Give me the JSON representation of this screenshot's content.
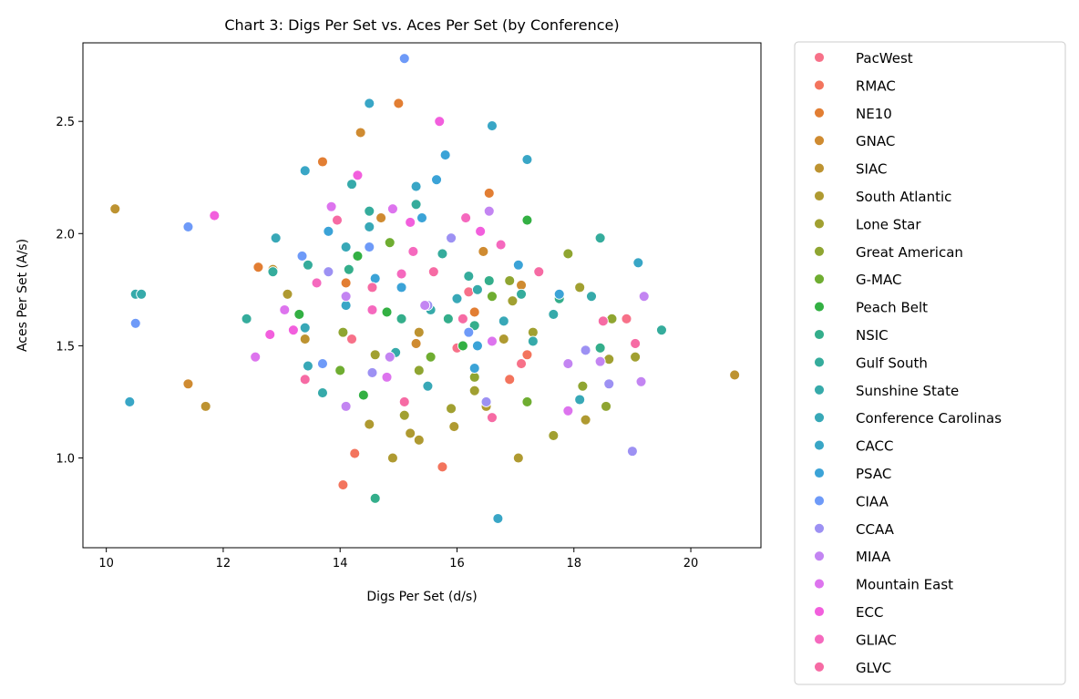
{
  "chart_data": {
    "type": "scatter",
    "title": "Chart 3: Digs Per Set vs. Aces Per Set (by Conference)",
    "xlabel": "Digs Per Set (d/s)",
    "ylabel": "Aces Per Set (A/s)",
    "xlim": [
      9.6,
      21.2
    ],
    "ylim": [
      0.6,
      2.85
    ],
    "xticks": [
      10,
      12,
      14,
      16,
      18,
      20
    ],
    "yticks": [
      1.0,
      1.5,
      2.0,
      2.5
    ],
    "xtick_labels": [
      "10",
      "12",
      "14",
      "16",
      "18",
      "20"
    ],
    "ytick_labels": [
      "1.0",
      "1.5",
      "2.0",
      "2.5"
    ],
    "grid": false,
    "legend_placement": "outside-right",
    "series": [
      {
        "name": "PacWest",
        "color": "#f77189",
        "points": [
          [
            16.2,
            1.74
          ],
          [
            17.1,
            1.42
          ],
          [
            18.9,
            1.62
          ],
          [
            14.2,
            1.53
          ],
          [
            16.0,
            1.49
          ]
        ]
      },
      {
        "name": "RMAC",
        "color": "#f3745d",
        "points": [
          [
            14.05,
            0.88
          ],
          [
            14.25,
            1.02
          ],
          [
            15.75,
            0.96
          ],
          [
            16.9,
            1.35
          ],
          [
            17.2,
            1.46
          ]
        ]
      },
      {
        "name": "NE10",
        "color": "#e27e33",
        "points": [
          [
            15.0,
            2.58
          ],
          [
            13.7,
            2.32
          ],
          [
            16.55,
            2.18
          ],
          [
            16.3,
            1.65
          ],
          [
            14.1,
            1.78
          ],
          [
            12.6,
            1.85
          ]
        ]
      },
      {
        "name": "GNAC",
        "color": "#cf8b31",
        "points": [
          [
            14.35,
            2.45
          ],
          [
            14.7,
            2.07
          ],
          [
            16.45,
            1.92
          ],
          [
            15.3,
            1.51
          ],
          [
            11.4,
            1.33
          ],
          [
            17.1,
            1.77
          ]
        ]
      },
      {
        "name": "SIAC",
        "color": "#bd9331",
        "points": [
          [
            10.15,
            2.11
          ],
          [
            11.7,
            1.23
          ],
          [
            20.75,
            1.37
          ],
          [
            12.85,
            1.84
          ],
          [
            13.4,
            1.53
          ],
          [
            15.35,
            1.56
          ]
        ]
      },
      {
        "name": "South Atlantic",
        "color": "#af9a31",
        "points": [
          [
            14.5,
            1.15
          ],
          [
            14.9,
            1.0
          ],
          [
            15.2,
            1.11
          ],
          [
            15.35,
            1.08
          ],
          [
            17.05,
            1.0
          ],
          [
            15.95,
            1.14
          ],
          [
            18.2,
            1.17
          ],
          [
            16.5,
            1.23
          ],
          [
            16.8,
            1.53
          ],
          [
            13.1,
            1.73
          ]
        ]
      },
      {
        "name": "Lone Star",
        "color": "#a1a031",
        "points": [
          [
            15.1,
            1.19
          ],
          [
            15.9,
            1.22
          ],
          [
            16.3,
            1.3
          ],
          [
            18.6,
            1.44
          ],
          [
            19.05,
            1.45
          ],
          [
            17.65,
            1.1
          ],
          [
            16.95,
            1.7
          ],
          [
            17.3,
            1.56
          ],
          [
            18.1,
            1.76
          ],
          [
            14.6,
            1.46
          ]
        ]
      },
      {
        "name": "Great American",
        "color": "#8fa531",
        "points": [
          [
            15.35,
            1.39
          ],
          [
            16.3,
            1.36
          ],
          [
            17.2,
            1.25
          ],
          [
            18.15,
            1.32
          ],
          [
            18.65,
            1.62
          ],
          [
            17.9,
            1.91
          ],
          [
            18.55,
            1.23
          ],
          [
            16.9,
            1.79
          ],
          [
            14.05,
            1.56
          ]
        ]
      },
      {
        "name": "G-MAC",
        "color": "#6fad31",
        "points": [
          [
            14.3,
            1.9
          ],
          [
            14.85,
            1.96
          ],
          [
            15.55,
            1.45
          ],
          [
            14.0,
            1.39
          ],
          [
            13.3,
            1.64
          ],
          [
            16.6,
            1.72
          ],
          [
            17.2,
            1.25
          ],
          [
            14.4,
            1.28
          ]
        ]
      },
      {
        "name": "Peach Belt",
        "color": "#33b043",
        "points": [
          [
            14.4,
            1.28
          ],
          [
            13.3,
            1.64
          ],
          [
            14.3,
            1.9
          ],
          [
            14.8,
            1.65
          ],
          [
            16.1,
            1.5
          ],
          [
            17.2,
            2.06
          ]
        ]
      },
      {
        "name": "NSIC",
        "color": "#34ae8b",
        "points": [
          [
            14.15,
            1.84
          ],
          [
            15.05,
            1.62
          ],
          [
            15.85,
            1.62
          ],
          [
            16.55,
            1.79
          ],
          [
            17.75,
            1.71
          ],
          [
            18.45,
            1.49
          ],
          [
            14.6,
            0.82
          ],
          [
            16.3,
            1.59
          ]
        ]
      },
      {
        "name": "Gulf South",
        "color": "#35ac9c",
        "points": [
          [
            12.4,
            1.62
          ],
          [
            12.85,
            1.83
          ],
          [
            13.45,
            1.86
          ],
          [
            14.5,
            2.1
          ],
          [
            15.3,
            2.13
          ],
          [
            16.2,
            1.81
          ],
          [
            17.1,
            1.73
          ],
          [
            19.5,
            1.57
          ],
          [
            18.45,
            1.98
          ],
          [
            15.75,
            1.91
          ]
        ]
      },
      {
        "name": "Sunshine State",
        "color": "#36aaaa",
        "points": [
          [
            10.5,
            1.73
          ],
          [
            10.6,
            1.73
          ],
          [
            13.7,
            1.29
          ],
          [
            14.2,
            2.22
          ],
          [
            14.95,
            1.47
          ],
          [
            15.55,
            1.66
          ],
          [
            16.35,
            1.75
          ],
          [
            17.3,
            1.52
          ],
          [
            17.65,
            1.64
          ],
          [
            18.3,
            1.72
          ]
        ]
      },
      {
        "name": "Conference Carolinas",
        "color": "#38a8b7",
        "points": [
          [
            12.9,
            1.98
          ],
          [
            13.4,
            1.58
          ],
          [
            13.45,
            1.41
          ],
          [
            14.5,
            2.03
          ],
          [
            15.5,
            1.32
          ],
          [
            16.0,
            1.71
          ],
          [
            16.8,
            1.61
          ],
          [
            18.1,
            1.26
          ],
          [
            14.1,
            1.94
          ]
        ]
      },
      {
        "name": "CACC",
        "color": "#39a6c6",
        "points": [
          [
            10.4,
            1.25
          ],
          [
            13.4,
            2.28
          ],
          [
            14.5,
            2.58
          ],
          [
            15.3,
            2.21
          ],
          [
            16.6,
            2.48
          ],
          [
            17.2,
            2.33
          ],
          [
            19.1,
            1.87
          ],
          [
            16.7,
            0.73
          ],
          [
            14.1,
            1.68
          ]
        ]
      },
      {
        "name": "PSAC",
        "color": "#3ba3d7",
        "points": [
          [
            13.8,
            2.01
          ],
          [
            15.05,
            1.76
          ],
          [
            15.8,
            2.35
          ],
          [
            16.3,
            1.4
          ],
          [
            17.05,
            1.86
          ],
          [
            17.75,
            1.73
          ],
          [
            14.6,
            1.8
          ],
          [
            15.4,
            2.07
          ],
          [
            15.65,
            2.24
          ],
          [
            16.35,
            1.5
          ]
        ]
      },
      {
        "name": "CIAA",
        "color": "#6e9af8",
        "points": [
          [
            10.5,
            1.6
          ],
          [
            11.4,
            2.03
          ],
          [
            13.35,
            1.9
          ],
          [
            13.7,
            1.42
          ],
          [
            14.5,
            1.94
          ],
          [
            15.1,
            2.78
          ],
          [
            16.2,
            1.56
          ]
        ]
      },
      {
        "name": "CCAA",
        "color": "#9d91f3",
        "points": [
          [
            13.8,
            1.83
          ],
          [
            14.55,
            1.38
          ],
          [
            15.9,
            1.98
          ],
          [
            16.5,
            1.25
          ],
          [
            18.2,
            1.48
          ],
          [
            19.0,
            1.03
          ],
          [
            18.6,
            1.33
          ],
          [
            15.5,
            1.68
          ]
        ]
      },
      {
        "name": "MIAA",
        "color": "#c385f2",
        "points": [
          [
            14.1,
            1.23
          ],
          [
            14.1,
            1.72
          ],
          [
            14.85,
            1.45
          ],
          [
            16.55,
            2.1
          ],
          [
            17.9,
            1.42
          ],
          [
            19.15,
            1.34
          ],
          [
            19.2,
            1.72
          ],
          [
            18.45,
            1.43
          ],
          [
            15.45,
            1.68
          ]
        ]
      },
      {
        "name": "Mountain East",
        "color": "#dd74ee",
        "points": [
          [
            12.55,
            1.45
          ],
          [
            13.05,
            1.66
          ],
          [
            13.85,
            2.12
          ],
          [
            14.8,
            1.36
          ],
          [
            16.6,
            1.52
          ],
          [
            17.9,
            1.21
          ],
          [
            14.9,
            2.11
          ]
        ]
      },
      {
        "name": "ECC",
        "color": "#f25fdd",
        "points": [
          [
            11.85,
            2.08
          ],
          [
            12.8,
            1.55
          ],
          [
            13.2,
            1.57
          ],
          [
            14.3,
            2.26
          ],
          [
            15.7,
            2.5
          ],
          [
            15.2,
            2.05
          ],
          [
            16.4,
            2.01
          ]
        ]
      },
      {
        "name": "GLIAC",
        "color": "#f569be",
        "points": [
          [
            13.6,
            1.78
          ],
          [
            14.55,
            1.66
          ],
          [
            15.05,
            1.82
          ],
          [
            15.25,
            1.92
          ],
          [
            16.15,
            2.07
          ],
          [
            16.75,
            1.95
          ]
        ]
      },
      {
        "name": "GLVC",
        "color": "#f66ba4",
        "points": [
          [
            13.4,
            1.35
          ],
          [
            13.95,
            2.06
          ],
          [
            14.55,
            1.76
          ],
          [
            15.6,
            1.83
          ],
          [
            16.1,
            1.62
          ],
          [
            16.6,
            1.18
          ],
          [
            17.4,
            1.83
          ],
          [
            18.5,
            1.61
          ],
          [
            19.05,
            1.51
          ],
          [
            15.1,
            1.25
          ]
        ]
      }
    ]
  }
}
